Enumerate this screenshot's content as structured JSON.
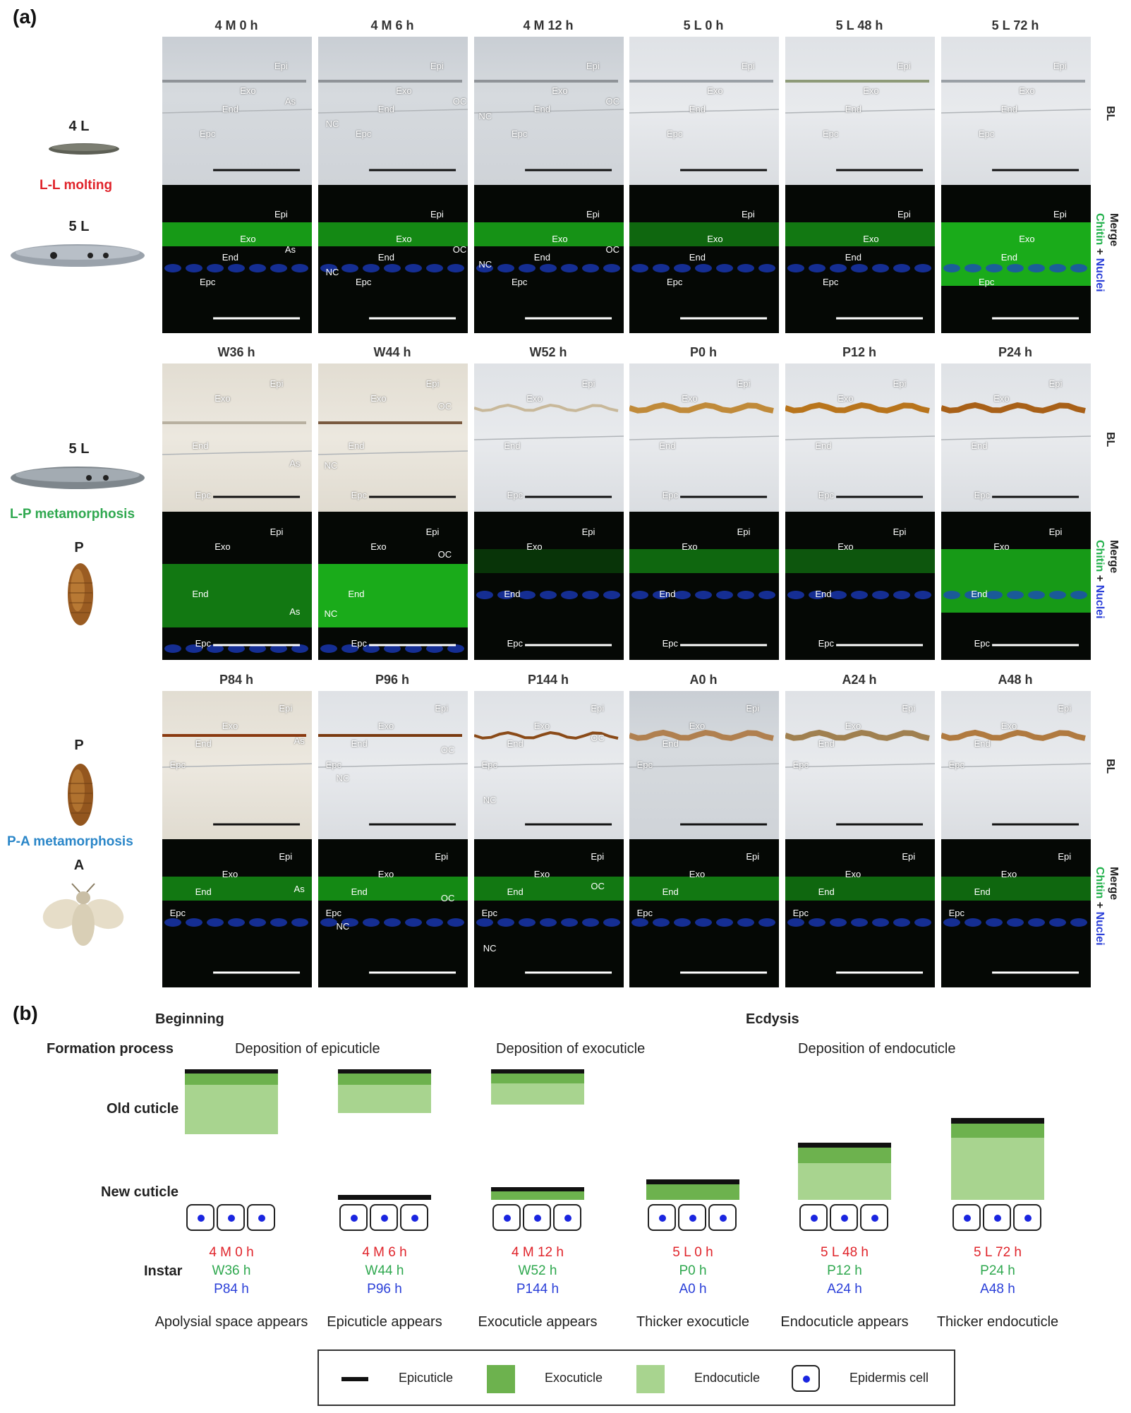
{
  "panel_a": {
    "label": "(a)",
    "rows": [
      {
        "titles": [
          "4 M 0 h",
          "4 M 6 h",
          "4 M 12 h",
          "5 L 0 h",
          "5 L 48 h",
          "5 L 72 h"
        ],
        "stages": [
          "4 L",
          "5 L"
        ],
        "process": "L-L molting",
        "process_color": "#e0242b"
      },
      {
        "titles": [
          "W36 h",
          "W44 h",
          "W52 h",
          "P0 h",
          "P12 h",
          "P24 h"
        ],
        "stages": [
          "5 L",
          "P"
        ],
        "process": "L-P metamorphosis",
        "process_color": "#2fa84f"
      },
      {
        "titles": [
          "P84 h",
          "P96 h",
          "P144 h",
          "A0 h",
          "A24 h",
          "A48 h"
        ],
        "stages": [
          "P",
          "A"
        ],
        "process": "P-A  metamorphosis",
        "process_color": "#2a86c8"
      }
    ],
    "side_labels": {
      "bl": "BL",
      "merge": "Merge",
      "chitin": "Chitin",
      "plus": "+",
      "nuclei": "Nuclei"
    },
    "annotations": {
      "epi": "Epi",
      "exo": "Exo",
      "end": "End",
      "epc": "Epc",
      "as": "As",
      "oc": "OC",
      "nc": "NC"
    }
  },
  "panel_b": {
    "label": "(b)",
    "beginning": "Beginning",
    "ecdysis": "Ecdysis",
    "formation_process": "Formation process",
    "old_cuticle": "Old cuticle",
    "new_cuticle": "New cuticle",
    "instar_label": "Instar",
    "phases": [
      "Deposition of epicuticle",
      "Deposition of exocuticle",
      "Deposition of endocuticle"
    ],
    "columns": [
      {
        "red": "4 M 0 h",
        "green": "W36 h",
        "blue": "P84 h",
        "caption": "Apolysial space appears"
      },
      {
        "red": "4 M 6 h",
        "green": "W44 h",
        "blue": "P96 h",
        "caption": "Epicuticle appears"
      },
      {
        "red": "4 M 12 h",
        "green": "W52 h",
        "blue": "P144 h",
        "caption": "Exocuticle appears"
      },
      {
        "red": "5 L 0 h",
        "green": "P0 h",
        "blue": "A0 h",
        "caption": "Thicker exocuticle"
      },
      {
        "red": "5 L 48 h",
        "green": "P12 h",
        "blue": "A24 h",
        "caption": "Endocuticle appears"
      },
      {
        "red": "5 L 72 h",
        "green": "P24 h",
        "blue": "A48 h",
        "caption": "Thicker endocuticle"
      }
    ],
    "legend": {
      "epicuticle": "Epicuticle",
      "exocuticle": "Exocuticle",
      "endocuticle": "Endocuticle",
      "epidermis": "Epidermis cell"
    },
    "colors": {
      "epicuticle": "#111111",
      "exocuticle": "#6db24e",
      "endocuticle": "#a8d48f",
      "nucleus": "#1a25e0"
    }
  }
}
